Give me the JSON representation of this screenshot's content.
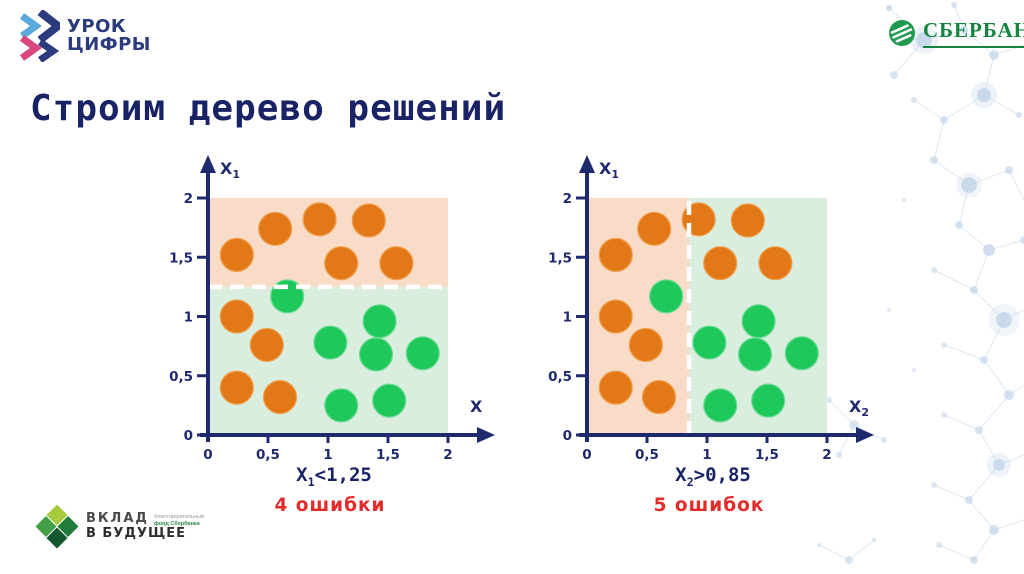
{
  "title": "Строим дерево решений",
  "colors": {
    "axis_navy": "#1f2a6e",
    "title_navy": "#1a2266",
    "error_red": "#e52a2a",
    "orange_point": "#e37818",
    "green_point": "#1ec85b",
    "orange_region": "#f8dcc8",
    "green_region": "#d9eede",
    "sber_green": "#15843f"
  },
  "header": {
    "urok_logo": {
      "line1": "УРОК",
      "line2": "ЦИФРЫ"
    },
    "sberbank_logo": {
      "text": "СБЕРБАНК"
    }
  },
  "footer_logo": {
    "line1": "ВКЛАД",
    "line2": "В БУДУЩЕЕ",
    "small1": "благотворительный",
    "small2": "фонд Сбербанка"
  },
  "chart_data": [
    {
      "type": "scatter",
      "ylabel": "X",
      "ylabel_sub": "1",
      "xlabel": "X",
      "xlabel_sub": "",
      "xlim": [
        0,
        2
      ],
      "ylim": [
        0,
        2
      ],
      "tick_values": [
        0,
        0.5,
        1,
        1.5,
        2
      ],
      "tick_labels": [
        "0",
        "0,5",
        "1",
        "1,5",
        "2"
      ],
      "regions": [
        {
          "name": "orange-zone",
          "x": [
            0,
            2
          ],
          "y": [
            1.25,
            2
          ],
          "color": "#f8dcc8"
        },
        {
          "name": "green-zone",
          "x": [
            0,
            2
          ],
          "y": [
            0,
            1.25
          ],
          "color": "#d9eede"
        }
      ],
      "split_line": {
        "axis": "y",
        "value": 1.25,
        "style": "white-dashed"
      },
      "series": [
        {
          "name": "orange",
          "color": "#e37818",
          "stroke": "#f0a04d",
          "points": [
            [
              0.24,
              1.52
            ],
            [
              0.56,
              1.74
            ],
            [
              0.93,
              1.82
            ],
            [
              1.34,
              1.81
            ],
            [
              1.11,
              1.45
            ],
            [
              1.57,
              1.45
            ],
            [
              0.24,
              1.0
            ],
            [
              0.49,
              0.76
            ],
            [
              0.24,
              0.4
            ],
            [
              0.6,
              0.32
            ]
          ]
        },
        {
          "name": "green",
          "color": "#1ec85b",
          "stroke": "#6fdc96",
          "points": [
            [
              0.66,
              1.17
            ],
            [
              1.02,
              0.78
            ],
            [
              1.43,
              0.96
            ],
            [
              1.4,
              0.68
            ],
            [
              1.79,
              0.69
            ],
            [
              1.11,
              0.25
            ],
            [
              1.51,
              0.29
            ]
          ]
        }
      ],
      "condition": {
        "main": "X",
        "sub": "1",
        "rest": "<1,25"
      },
      "errors_label": "4 ошибки",
      "errors_count": 4
    },
    {
      "type": "scatter",
      "ylabel": "X",
      "ylabel_sub": "1",
      "xlabel": "X",
      "xlabel_sub": "2",
      "xlim": [
        0,
        2
      ],
      "ylim": [
        0,
        2
      ],
      "tick_values": [
        0,
        0.5,
        1,
        1.5,
        2
      ],
      "tick_labels": [
        "0",
        "0,5",
        "1",
        "1,5",
        "2"
      ],
      "regions": [
        {
          "name": "orange-zone",
          "x": [
            0,
            0.85
          ],
          "y": [
            0,
            2
          ],
          "color": "#f8dcc8"
        },
        {
          "name": "green-zone",
          "x": [
            0.85,
            2
          ],
          "y": [
            0,
            2
          ],
          "color": "#d9eede"
        }
      ],
      "split_line": {
        "axis": "x",
        "value": 0.85,
        "style": "white-dashed"
      },
      "series": [
        {
          "name": "orange",
          "color": "#e37818",
          "stroke": "#f0a04d",
          "points": [
            [
              0.24,
              1.52
            ],
            [
              0.56,
              1.74
            ],
            [
              0.93,
              1.82
            ],
            [
              1.34,
              1.81
            ],
            [
              1.11,
              1.45
            ],
            [
              1.57,
              1.45
            ],
            [
              0.24,
              1.0
            ],
            [
              0.49,
              0.76
            ],
            [
              0.24,
              0.4
            ],
            [
              0.6,
              0.32
            ]
          ]
        },
        {
          "name": "green",
          "color": "#1ec85b",
          "stroke": "#6fdc96",
          "points": [
            [
              0.66,
              1.17
            ],
            [
              1.02,
              0.78
            ],
            [
              1.43,
              0.96
            ],
            [
              1.4,
              0.68
            ],
            [
              1.79,
              0.69
            ],
            [
              1.11,
              0.25
            ],
            [
              1.51,
              0.29
            ]
          ]
        }
      ],
      "condition": {
        "main": "X",
        "sub": "2",
        "rest": ">0,85"
      },
      "errors_label": "5 ошибок",
      "errors_count": 5
    }
  ]
}
